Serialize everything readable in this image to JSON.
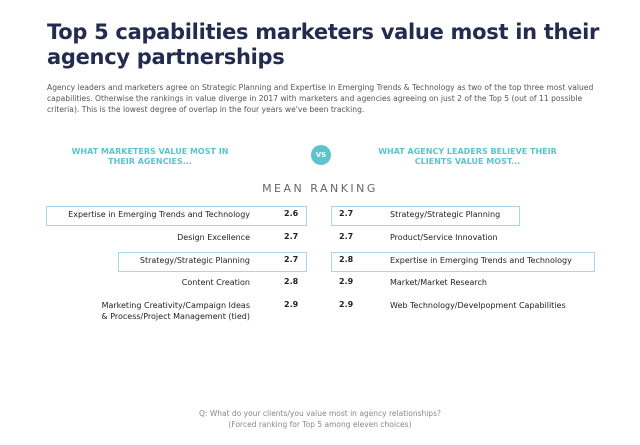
{
  "title": [
    "Top 5 capabilities marketers value most in their",
    "agency partnerships"
  ],
  "intro": "Agency leaders and marketers agree on Strategic Planning and Expertise in Emerging Trends & Technology as two of the top three most valued capabilities. Otherwise the rankings in value diverge in 2017 with marketers and agencies agreeing on just 2 of the Top 5 (out of 11 possible criteria). This is the lowest degree of overlap in the four years we've been tracking.",
  "left": {
    "heading": [
      "WHAT MARKETERS VALUE MOST IN",
      "THEIR AGENCIES..."
    ],
    "rows": [
      {
        "label": [
          "Expertise in Emerging Trends and Technology"
        ],
        "value": 2.6,
        "highlighted": true
      },
      {
        "label": [
          "Design Excellence"
        ],
        "value": 2.7,
        "highlighted": false
      },
      {
        "label": [
          "Strategy/Strategic Planning"
        ],
        "value": 2.7,
        "highlighted": true
      },
      {
        "label": [
          "Content Creation"
        ],
        "value": 2.8,
        "highlighted": false
      },
      {
        "label": [
          "Marketing Creativity/Campaign Ideas",
          "& Process/Project Management (tied)"
        ],
        "value": 2.9,
        "highlighted": false
      }
    ]
  },
  "vs": "VS",
  "right": {
    "heading": [
      "WHAT AGENCY LEADERS BELIEVE THEIR",
      "CLIENTS VALUE MOST..."
    ],
    "rows": [
      {
        "label": [
          "Strategy/Strategic Planning"
        ],
        "value": 2.7,
        "highlighted": true
      },
      {
        "label": [
          "Product/Service Innovation"
        ],
        "value": 2.7,
        "highlighted": false
      },
      {
        "label": [
          "Expertise in Emerging Trends and Technology"
        ],
        "value": 2.8,
        "highlighted": true
      },
      {
        "label": [
          "Market/Market Research"
        ],
        "value": 2.9,
        "highlighted": false
      },
      {
        "label": [
          "Web Technology/Develpopment Capabilities"
        ],
        "value": 2.9,
        "highlighted": false
      }
    ]
  },
  "subheading": "MEAN RANKING",
  "footnote": [
    "Q: What do your clients/you value most in agency relationships?",
    "(Forced ranking for Top 5 among eleven choices)"
  ]
}
